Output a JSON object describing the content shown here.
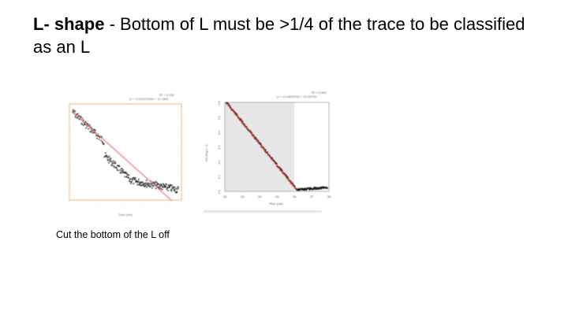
{
  "slide": {
    "title_bold": "L- shape",
    "title_rest": " - Bottom of L must be >1/4 of the trace to be classified as an L",
    "caption": "Cut the bottom of the L off"
  },
  "plots": {
    "left": {
      "equation": "y = -0.02107549x + 11.1800",
      "r2": "R² = 0.930",
      "xlabel": "Time (min)",
      "frame_color": "#e8a05a",
      "fit_color": "#f08080"
    },
    "right": {
      "equation": "y = -0.1481572x + 14.26733",
      "r2": "R² = 0.993",
      "xlabel": "Time (min)",
      "ylabel": "O2 (mg L⁻¹)",
      "x_ticks": [
        "52",
        "53",
        "54",
        "55",
        "56",
        "57",
        "58"
      ],
      "y_ticks": [
        "6.0",
        "6.1",
        "6.2",
        "6.3",
        "6.4",
        "6.5",
        "6.6"
      ],
      "fit_color": "#e03020",
      "shade_color": "#e6e6e6"
    }
  }
}
